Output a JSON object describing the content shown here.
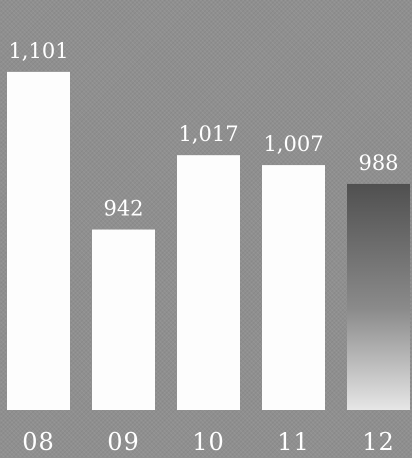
{
  "chart_data": {
    "type": "bar",
    "title": "",
    "xlabel": "",
    "ylabel": "",
    "categories": [
      "08",
      "09",
      "10",
      "11",
      "12"
    ],
    "values": [
      1101,
      942,
      1017,
      1007,
      988
    ],
    "value_labels": [
      "1,101",
      "942",
      "1,017",
      "1,007",
      "988"
    ],
    "ylim": [
      760,
      1115
    ],
    "grid": false,
    "colors": {
      "background": "#8f8f8f",
      "bar": "#fdfdfd",
      "highlight_top": "#505050",
      "highlight_mid": "#8a8a8a",
      "highlight_bottom": "#e6e6e6",
      "text": "#ffffff"
    },
    "highlight_index": 4
  }
}
